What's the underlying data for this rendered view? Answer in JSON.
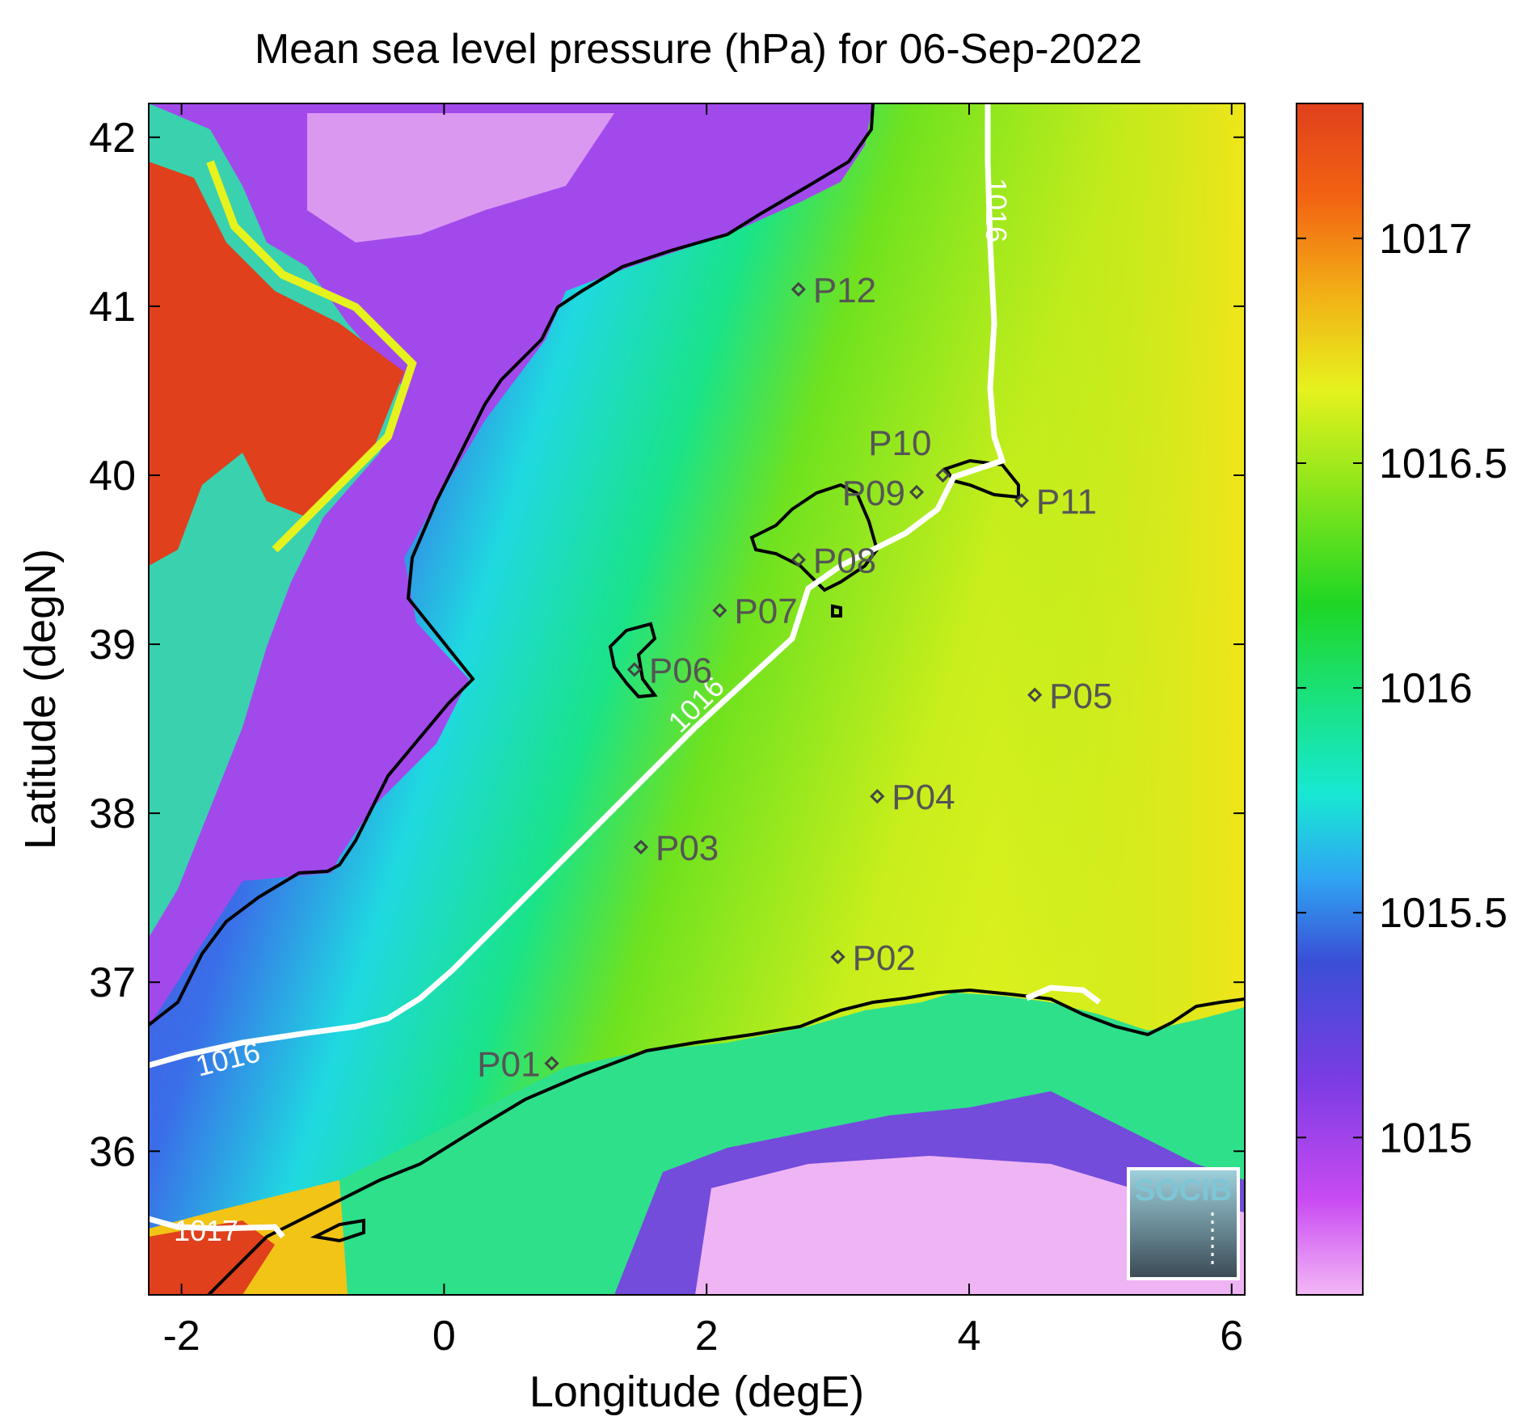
{
  "title": "Mean sea level pressure (hPa) for 06-Sep-2022",
  "xlabel": "Longitude (degE)",
  "ylabel": "Latitude (degN)",
  "x_ticks": [
    "-2",
    "0",
    "2",
    "4",
    "6"
  ],
  "y_ticks": [
    "42",
    "41",
    "40",
    "39",
    "38",
    "37",
    "36"
  ],
  "colorbar": {
    "ticks": [
      "1017",
      "1016.5",
      "1016",
      "1015.5",
      "1015"
    ],
    "range": [
      1014.65,
      1017.3
    ],
    "colors": [
      "#f3b7f6",
      "#c94bf2",
      "#7b3ce3",
      "#3a4fd6",
      "#2fa5f2",
      "#18e8d3",
      "#19e38a",
      "#1fd624",
      "#8fe61b",
      "#e6f21d",
      "#f2b016",
      "#f26412",
      "#e0401c"
    ]
  },
  "contours": {
    "labels": [
      "1016",
      "1016",
      "1016",
      "1017"
    ],
    "color": "#ffffff"
  },
  "stations": [
    {
      "label": "P01",
      "lon": 0.82,
      "lat": 36.52
    },
    {
      "label": "P02",
      "lon": 3.0,
      "lat": 37.15
    },
    {
      "label": "P03",
      "lon": 1.5,
      "lat": 37.8
    },
    {
      "label": "P04",
      "lon": 3.3,
      "lat": 38.1
    },
    {
      "label": "P05",
      "lon": 4.5,
      "lat": 38.7
    },
    {
      "label": "P06",
      "lon": 1.45,
      "lat": 38.85
    },
    {
      "label": "P07",
      "lon": 2.1,
      "lat": 39.2
    },
    {
      "label": "P08",
      "lon": 2.7,
      "lat": 39.5
    },
    {
      "label": "P09",
      "lon": 3.6,
      "lat": 39.9
    },
    {
      "label": "P10",
      "lon": 3.8,
      "lat": 40.0
    },
    {
      "label": "P11",
      "lon": 4.4,
      "lat": 39.85
    },
    {
      "label": "P12",
      "lon": 2.7,
      "lat": 41.1
    }
  ],
  "logo": {
    "text": "SOCIB"
  }
}
